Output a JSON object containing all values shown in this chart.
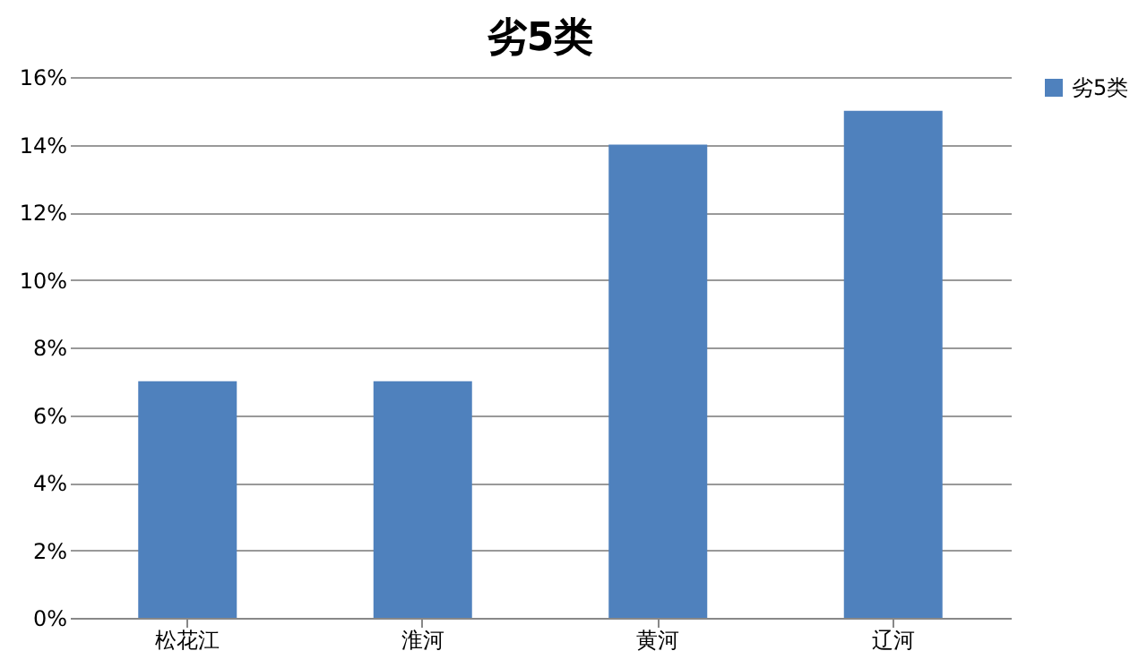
{
  "chart_data": {
    "type": "bar",
    "title": "劣5类",
    "categories": [
      "松花江",
      "淮河",
      "黄河",
      "辽河"
    ],
    "series": [
      {
        "name": "劣5类",
        "color": "#4f81bd",
        "values": [
          7,
          7,
          14,
          15
        ]
      }
    ],
    "ylim": [
      0,
      16
    ],
    "yticks": [
      {
        "value": 0,
        "label": "0%"
      },
      {
        "value": 2,
        "label": "2%"
      },
      {
        "value": 4,
        "label": "4%"
      },
      {
        "value": 6,
        "label": "6%"
      },
      {
        "value": 8,
        "label": "8%"
      },
      {
        "value": 10,
        "label": "10%"
      },
      {
        "value": 12,
        "label": "12%"
      },
      {
        "value": 14,
        "label": "14%"
      },
      {
        "value": 16,
        "label": "16%"
      }
    ],
    "grid": "y",
    "legend": "right"
  }
}
